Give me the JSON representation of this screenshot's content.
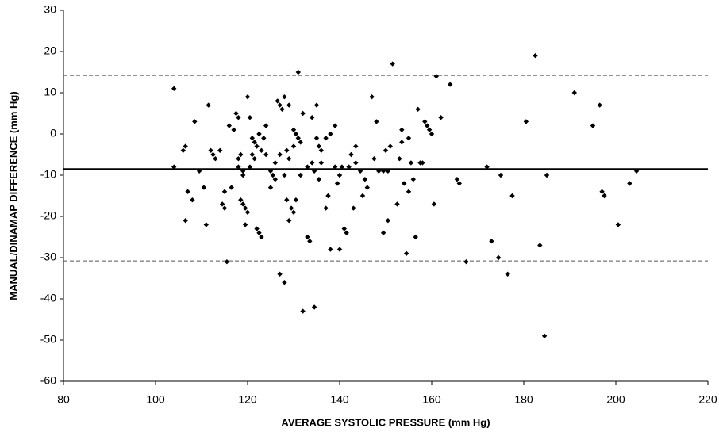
{
  "chart_data": {
    "type": "scatter",
    "x_label": "AVERAGE SYSTOLIC PRESSURE (mm Hg)",
    "y_label": "MANUAL/DINAMAP DIFFERENCE (mm Hg)",
    "x": [
      104,
      104,
      106,
      106.5,
      106.5,
      107,
      108,
      108.5,
      109.5,
      110.5,
      111,
      111.5,
      112,
      112.5,
      113,
      114,
      114.5,
      115,
      115,
      115.5,
      116,
      116.5,
      117,
      117.5,
      118,
      118,
      118,
      118.5,
      118.5,
      119,
      119,
      119,
      119.5,
      119.5,
      120,
      120,
      120.5,
      120.5,
      121,
      121,
      121.5,
      121.5,
      122,
      122,
      122.5,
      122.5,
      123,
      123,
      123.5,
      124,
      124,
      125,
      125,
      125.5,
      126,
      126,
      126.5,
      127,
      127,
      127,
      127.5,
      128,
      128,
      128,
      128.5,
      128.5,
      129,
      129,
      129,
      129.5,
      130,
      130,
      130,
      130.5,
      130.5,
      131,
      131,
      131.5,
      131.5,
      132,
      132,
      133,
      133,
      133.5,
      134,
      134,
      134.5,
      134.5,
      135,
      135,
      135.5,
      135.5,
      136,
      136,
      137,
      137,
      137.5,
      138,
      138,
      139,
      139,
      139.5,
      140,
      140,
      140.5,
      141,
      141.5,
      142,
      142.5,
      143,
      143.5,
      143.5,
      144.5,
      145,
      145.5,
      146,
      147,
      147.5,
      148,
      148.5,
      149.5,
      149.5,
      150,
      150.5,
      150.5,
      151,
      151.5,
      152.5,
      153,
      153.5,
      153.5,
      154,
      154.5,
      155,
      155,
      155.5,
      156,
      156.5,
      157,
      157.5,
      158,
      158.5,
      159,
      159.5,
      160,
      160.5,
      161,
      162,
      164,
      165.5,
      166,
      167.5,
      172,
      173,
      174.5,
      175,
      176.5,
      177.5,
      180.5,
      182.5,
      183.5,
      184.5,
      185,
      191,
      195,
      196.5,
      197,
      197.5,
      200.5,
      203,
      204.5
    ],
    "values": [
      11,
      -8,
      -4,
      -3,
      -21,
      -14,
      -16,
      3,
      -9,
      -13,
      -22,
      7,
      -4,
      -5,
      -6,
      -4,
      -17,
      -18,
      -14,
      -31,
      2,
      -13,
      1,
      5,
      4,
      -6,
      -8,
      -16,
      -5,
      -9,
      -10,
      -17,
      -18,
      -22,
      -19,
      9,
      -8,
      4,
      -1,
      -5,
      -2,
      -6,
      -3,
      -23,
      -24,
      0,
      -4,
      -25,
      -1,
      2,
      -5,
      -9,
      -13,
      -10,
      -11,
      -7,
      8,
      7,
      -5,
      -34,
      6,
      9,
      -10,
      -36,
      -4,
      -16,
      7,
      -6,
      -21,
      -18,
      1,
      -3,
      -19,
      0,
      -16,
      15,
      -1,
      -2,
      -10,
      -43,
      5,
      -8,
      -25,
      -26,
      -7,
      4,
      -42,
      -9,
      7,
      -1,
      -3,
      -11,
      -4,
      -7,
      -1,
      -18,
      -15,
      0,
      -28,
      2,
      -8,
      -12,
      -28,
      -10,
      -8,
      -23,
      -24,
      -8,
      -5,
      -18,
      -3,
      -7,
      -9,
      -15,
      -11,
      -13,
      9,
      -6,
      3,
      -9,
      -9,
      -24,
      -4,
      -9,
      -21,
      -3,
      17,
      -17,
      -6,
      -2,
      1,
      -12,
      -29,
      -1,
      -14,
      -7,
      -11,
      -25,
      6,
      -7,
      -7,
      3,
      2,
      1,
      0,
      -17,
      14,
      4,
      12,
      -11,
      -12,
      -31,
      -8,
      -26,
      -30,
      -10,
      -34,
      -15,
      3,
      19,
      -27,
      -49,
      -10,
      10,
      2,
      7,
      -14,
      -15,
      -22,
      -12,
      -9
    ],
    "color": "#000000",
    "reference_lines": [
      {
        "value": -8.5,
        "style": "solid"
      },
      {
        "value": 14.2,
        "style": "dashed"
      },
      {
        "value": -30.8,
        "style": "dashed"
      }
    ],
    "xlim": [
      80,
      220
    ],
    "xticks": [
      80,
      100,
      120,
      140,
      160,
      180,
      200,
      220
    ],
    "ylim": [
      -60,
      30
    ],
    "yticks": [
      -60,
      -50,
      -40,
      -30,
      -20,
      -10,
      0,
      10,
      20,
      30
    ],
    "grid": false
  }
}
